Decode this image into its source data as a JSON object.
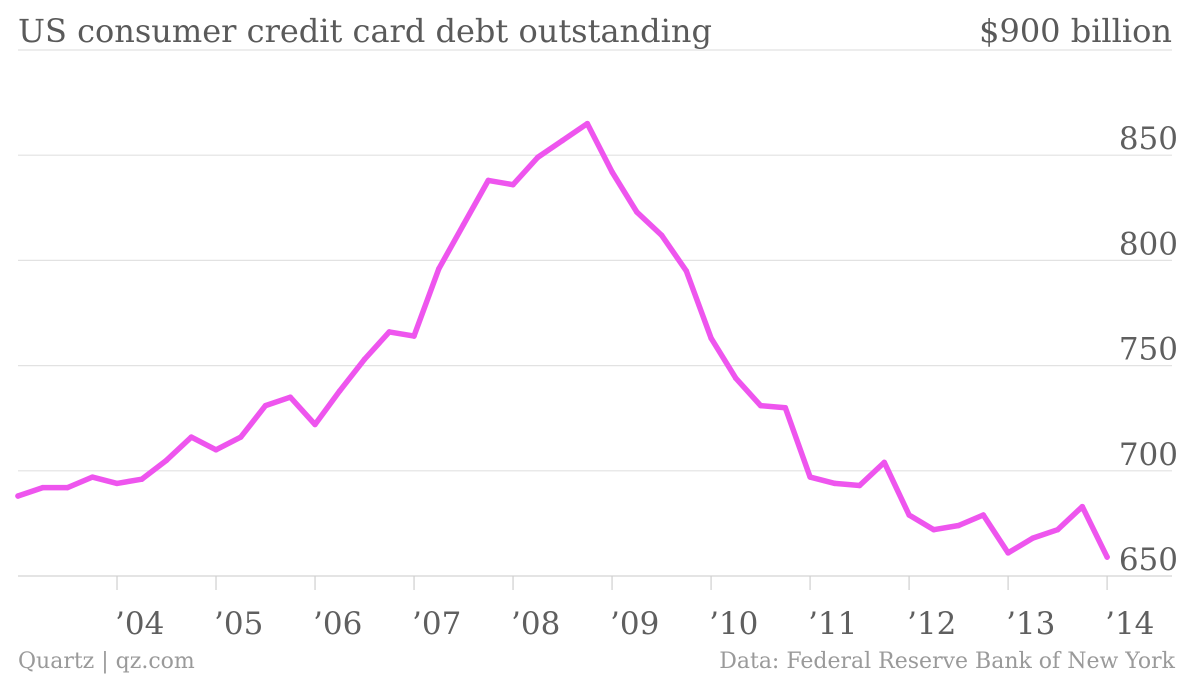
{
  "chart_data": {
    "type": "line",
    "title": "US consumer credit card debt outstanding",
    "ylabel": "",
    "xlabel": "",
    "y_unit_label": "$900 billion",
    "yticks": [
      650,
      700,
      750,
      800,
      850
    ],
    "ylim": [
      650,
      900
    ],
    "xlim": [
      2003.0,
      2014.1
    ],
    "xtick_values": [
      2004,
      2005,
      2006,
      2007,
      2008,
      2009,
      2010,
      2011,
      2012,
      2013,
      2014
    ],
    "xtick_labels": [
      "’04",
      "’05",
      "’06",
      "’07",
      "’08",
      "’09",
      "’10",
      "’11",
      "’12",
      "’13",
      "’14"
    ],
    "grid": true,
    "colors": {
      "line": "#ee55ee"
    },
    "series": [
      {
        "x": [
          2003.0,
          2003.25,
          2003.5,
          2003.75,
          2004.0,
          2004.25,
          2004.5,
          2004.75,
          2005.0,
          2005.25,
          2005.5,
          2005.75,
          2006.0,
          2006.25,
          2006.5,
          2006.75,
          2007.0,
          2007.25,
          2007.5,
          2007.75,
          2008.0,
          2008.25,
          2008.5,
          2008.75,
          2009.0,
          2009.25,
          2009.5,
          2009.75,
          2010.0,
          2010.25,
          2010.5,
          2010.75,
          2011.0,
          2011.25,
          2011.5,
          2011.75,
          2012.0,
          2012.25,
          2012.5,
          2012.75,
          2013.0,
          2013.25,
          2013.5,
          2013.75,
          2014.0
        ],
        "y": [
          688,
          692,
          692,
          697,
          694,
          696,
          705,
          716,
          710,
          716,
          731,
          735,
          722,
          738,
          753,
          766,
          764,
          796,
          817,
          838,
          836,
          849,
          857,
          865,
          842,
          823,
          812,
          795,
          763,
          744,
          731,
          730,
          697,
          694,
          693,
          704,
          679,
          672,
          674,
          679,
          661,
          668,
          672,
          683,
          659
        ]
      }
    ]
  },
  "footer": {
    "source_left": "Quartz | qz.com",
    "source_right": "Data: Federal Reserve Bank of New York"
  }
}
